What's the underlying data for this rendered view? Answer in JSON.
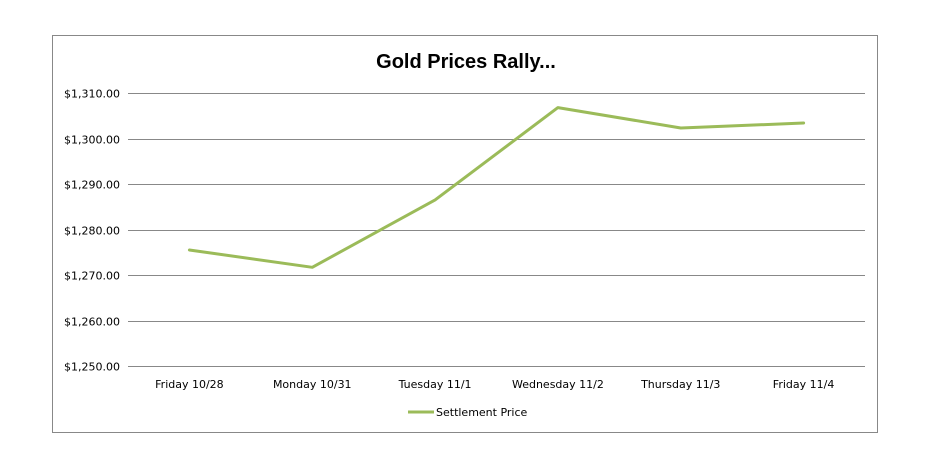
{
  "chart_data": {
    "type": "line",
    "title": "Gold Prices Rally...",
    "categories": [
      "Friday 10/28",
      "Monday 10/31",
      "Tuesday 11/1",
      "Wednesday 11/2",
      "Thursday 11/3",
      "Friday 11/4"
    ],
    "series": [
      {
        "name": "Settlement Price",
        "values": [
          1275.5,
          1271.7,
          1286.5,
          1306.8,
          1302.3,
          1303.4
        ]
      }
    ],
    "ylim": [
      1250,
      1310
    ],
    "yticks": [
      1250,
      1260,
      1270,
      1280,
      1290,
      1300,
      1310
    ],
    "ytick_labels": [
      "$1,250.00",
      "$1,260.00",
      "$1,270.00",
      "$1,280.00",
      "$1,290.00",
      "$1,300.00",
      "$1,310.00"
    ],
    "grid": true,
    "legend_position": "bottom",
    "line_color": "#9BBB59",
    "grid_color": "#888888"
  }
}
